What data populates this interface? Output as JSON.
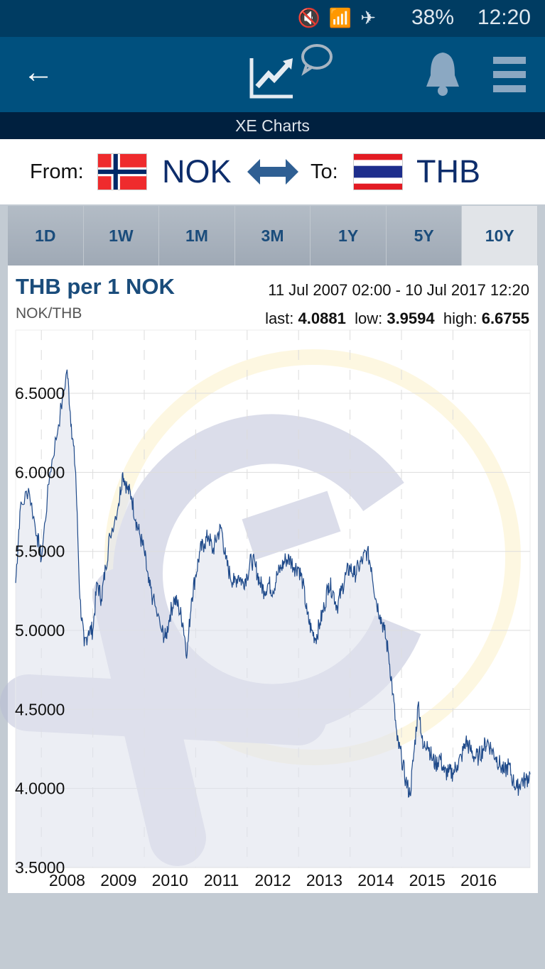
{
  "status": {
    "time": "12:20",
    "battery": "38%",
    "icons": [
      "mute-icon",
      "wifi-icon",
      "airplane-icon",
      "battery-icon"
    ]
  },
  "appbar": {
    "back_icon": "arrow-left-icon",
    "logo_icon": "chart-chat-icon",
    "alert_icon": "bell-icon",
    "menu_icon": "hamburger-menu-icon"
  },
  "subbar": {
    "title": "XE Charts"
  },
  "pair": {
    "from_label": "From:",
    "from_currency": "NOK",
    "swap_icon": "swap-arrows-icon",
    "to_label": "To:",
    "to_currency": "THB"
  },
  "tabs": [
    {
      "label": "1D"
    },
    {
      "label": "1W"
    },
    {
      "label": "1M"
    },
    {
      "label": "3M"
    },
    {
      "label": "1Y"
    },
    {
      "label": "5Y"
    },
    {
      "label": "10Y",
      "selected": true
    }
  ],
  "header": {
    "title": "THB per 1 NOK",
    "pair": "NOK/THB",
    "range": "11 Jul 2007 02:00 - 10 Jul 2017 12:20",
    "last_label": "last:",
    "last": "4.0881",
    "low_label": "low:",
    "low": "3.9594",
    "high_label": "high:",
    "high": "6.6755"
  },
  "colors": {
    "line": "#1f4a8a",
    "fill": "#dfe2ec",
    "appbar": "#00507e",
    "accent": "#1a4c7b"
  },
  "chart_data": {
    "type": "area",
    "ylim": [
      3.5,
      6.9
    ],
    "xlim": [
      "2007-07",
      "2017-07"
    ],
    "yticks": [
      "6.5000",
      "6.0000",
      "5.5000",
      "5.0000",
      "4.5000",
      "4.0000",
      "3.5000"
    ],
    "xticks": [
      "2008",
      "2009",
      "2010",
      "2011",
      "2012",
      "2013",
      "2014",
      "2015",
      "2016"
    ],
    "grid": true,
    "x": [
      "2007-07",
      "2007-08",
      "2007-10",
      "2007-12",
      "2008-01",
      "2008-03",
      "2008-05",
      "2008-07",
      "2008-08",
      "2008-09",
      "2008-10",
      "2008-11",
      "2008-12",
      "2009-01",
      "2009-02",
      "2009-03",
      "2009-04",
      "2009-05",
      "2009-07",
      "2009-08",
      "2009-09",
      "2009-10",
      "2009-11",
      "2009-12",
      "2010-01",
      "2010-02",
      "2010-03",
      "2010-05",
      "2010-06",
      "2010-07",
      "2010-08",
      "2010-09",
      "2010-10",
      "2010-11",
      "2010-12",
      "2011-01",
      "2011-02",
      "2011-03",
      "2011-04",
      "2011-05",
      "2011-06",
      "2011-07",
      "2011-08",
      "2011-09",
      "2011-10",
      "2011-11",
      "2011-12",
      "2012-01",
      "2012-02",
      "2012-03",
      "2012-04",
      "2012-05",
      "2012-06",
      "2012-07",
      "2012-08",
      "2012-09",
      "2012-10",
      "2012-11",
      "2012-12",
      "2013-01",
      "2013-02",
      "2013-03",
      "2013-04",
      "2013-05",
      "2013-06",
      "2013-07",
      "2013-08",
      "2013-09",
      "2013-10",
      "2013-11",
      "2013-12",
      "2014-01",
      "2014-02",
      "2014-03",
      "2014-04",
      "2014-05",
      "2014-06",
      "2014-07",
      "2014-08",
      "2014-09",
      "2014-10",
      "2014-11",
      "2014-12",
      "2015-01",
      "2015-02",
      "2015-03",
      "2015-04",
      "2015-05",
      "2015-06",
      "2015-07",
      "2015-08",
      "2015-09",
      "2015-10",
      "2015-11",
      "2015-12",
      "2016-01",
      "2016-02",
      "2016-03",
      "2016-04",
      "2016-05",
      "2016-06",
      "2016-07",
      "2016-08",
      "2016-09",
      "2016-10",
      "2016-11",
      "2016-12",
      "2017-01",
      "2017-02",
      "2017-03",
      "2017-04",
      "2017-05",
      "2017-06",
      "2017-07"
    ],
    "values": [
      5.3,
      5.75,
      5.9,
      5.6,
      5.45,
      6.0,
      6.3,
      6.65,
      6.3,
      6.0,
      5.2,
      4.9,
      5.0,
      5.0,
      5.3,
      5.2,
      5.4,
      5.6,
      5.8,
      6.0,
      5.9,
      5.85,
      5.7,
      5.6,
      5.5,
      5.3,
      5.2,
      5.0,
      4.95,
      5.1,
      5.2,
      5.15,
      5.05,
      4.85,
      5.2,
      5.35,
      5.5,
      5.55,
      5.6,
      5.5,
      5.6,
      5.65,
      5.45,
      5.35,
      5.3,
      5.35,
      5.3,
      5.35,
      5.45,
      5.4,
      5.3,
      5.25,
      5.3,
      5.25,
      5.35,
      5.4,
      5.45,
      5.45,
      5.4,
      5.4,
      5.3,
      5.1,
      5.0,
      4.95,
      5.05,
      5.15,
      5.3,
      5.25,
      5.15,
      5.25,
      5.35,
      5.4,
      5.35,
      5.4,
      5.45,
      5.5,
      5.4,
      5.2,
      5.1,
      5.0,
      4.85,
      4.6,
      4.3,
      4.2,
      4.05,
      3.96,
      4.25,
      4.55,
      4.25,
      4.3,
      4.2,
      4.15,
      4.2,
      4.1,
      4.1,
      4.1,
      4.15,
      4.2,
      4.3,
      4.25,
      4.2,
      4.2,
      4.25,
      4.3,
      4.25,
      4.2,
      4.15,
      4.1,
      4.15,
      4.05,
      4.0,
      4.05,
      4.05,
      4.09
    ]
  }
}
